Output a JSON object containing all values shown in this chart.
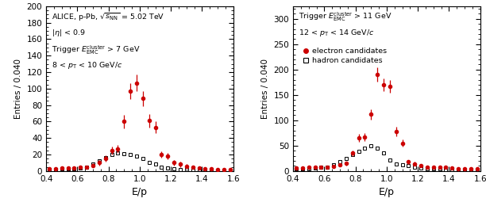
{
  "left": {
    "ylim": [
      0,
      200
    ],
    "yticks": [
      0,
      20,
      40,
      60,
      80,
      100,
      120,
      140,
      160,
      180,
      200
    ],
    "electron_x": [
      0.42,
      0.46,
      0.5,
      0.54,
      0.58,
      0.62,
      0.66,
      0.7,
      0.74,
      0.78,
      0.82,
      0.86,
      0.9,
      0.94,
      0.98,
      1.02,
      1.06,
      1.1,
      1.14,
      1.18,
      1.22,
      1.26,
      1.3,
      1.34,
      1.38,
      1.42,
      1.46,
      1.5,
      1.54,
      1.58
    ],
    "electron_y": [
      3,
      3,
      4,
      4,
      4,
      5,
      5,
      7,
      10,
      15,
      25,
      27,
      60,
      97,
      107,
      88,
      61,
      53,
      20,
      18,
      10,
      8,
      6,
      5,
      4,
      3,
      3,
      2,
      2,
      2
    ],
    "electron_yerr": [
      1.5,
      1.5,
      1.5,
      1.5,
      1.5,
      2,
      2,
      2.5,
      3,
      4,
      5,
      5,
      8,
      10,
      10,
      9,
      8,
      7,
      4,
      4,
      3,
      3,
      2.5,
      2,
      2,
      2,
      2,
      1.5,
      1.5,
      1.5
    ],
    "hadron_x": [
      0.42,
      0.46,
      0.5,
      0.54,
      0.58,
      0.62,
      0.66,
      0.7,
      0.74,
      0.78,
      0.82,
      0.86,
      0.9,
      0.94,
      0.98,
      1.02,
      1.06,
      1.1,
      1.14,
      1.18,
      1.22,
      1.26,
      1.3,
      1.34,
      1.38,
      1.42,
      1.46,
      1.5,
      1.54,
      1.58
    ],
    "hadron_y": [
      2,
      2,
      3,
      3,
      3,
      4,
      5,
      8,
      12,
      16,
      20,
      22,
      21,
      20,
      18,
      15,
      10,
      8,
      5,
      4,
      3,
      2,
      2,
      1,
      1,
      1,
      1,
      1,
      0,
      0
    ]
  },
  "right": {
    "ylim": [
      0,
      325
    ],
    "yticks": [
      0,
      50,
      100,
      150,
      200,
      250,
      300
    ],
    "electron_x": [
      0.42,
      0.46,
      0.5,
      0.54,
      0.58,
      0.62,
      0.66,
      0.7,
      0.74,
      0.78,
      0.82,
      0.86,
      0.9,
      0.94,
      0.98,
      1.02,
      1.06,
      1.1,
      1.14,
      1.18,
      1.22,
      1.26,
      1.3,
      1.34,
      1.38,
      1.42,
      1.46,
      1.5,
      1.54,
      1.58
    ],
    "electron_y": [
      6,
      6,
      7,
      7,
      8,
      8,
      9,
      12,
      15,
      35,
      65,
      67,
      112,
      190,
      170,
      167,
      78,
      55,
      18,
      14,
      10,
      8,
      7,
      7,
      7,
      6,
      5,
      5,
      5,
      4
    ],
    "electron_yerr": [
      2,
      2,
      2,
      2,
      2.5,
      2.5,
      3,
      3,
      4,
      6,
      8,
      8,
      10,
      14,
      13,
      13,
      9,
      7,
      4,
      4,
      3,
      3,
      3,
      2.5,
      2.5,
      2,
      2,
      2,
      2,
      2
    ],
    "hadron_x": [
      0.42,
      0.46,
      0.5,
      0.54,
      0.58,
      0.62,
      0.66,
      0.7,
      0.74,
      0.78,
      0.82,
      0.86,
      0.9,
      0.94,
      0.98,
      1.02,
      1.06,
      1.1,
      1.14,
      1.18,
      1.22,
      1.26,
      1.3,
      1.34,
      1.38,
      1.42,
      1.46,
      1.5,
      1.54,
      1.58
    ],
    "hadron_y": [
      4,
      4,
      5,
      6,
      7,
      8,
      12,
      18,
      25,
      33,
      38,
      45,
      50,
      45,
      35,
      22,
      14,
      12,
      10,
      8,
      6,
      5,
      5,
      4,
      3,
      3,
      2,
      2,
      2,
      1
    ]
  },
  "electron_color": "#cc0000",
  "hadron_color": "#000000",
  "xlabel": "E/p",
  "ylabel": "Entries / 0.040",
  "xlim": [
    0.4,
    1.6
  ],
  "xticks": [
    0.4,
    0.6,
    0.8,
    1.0,
    1.2,
    1.4,
    1.6
  ],
  "text_fontsize": 6.8,
  "legend_fontsize": 6.8
}
